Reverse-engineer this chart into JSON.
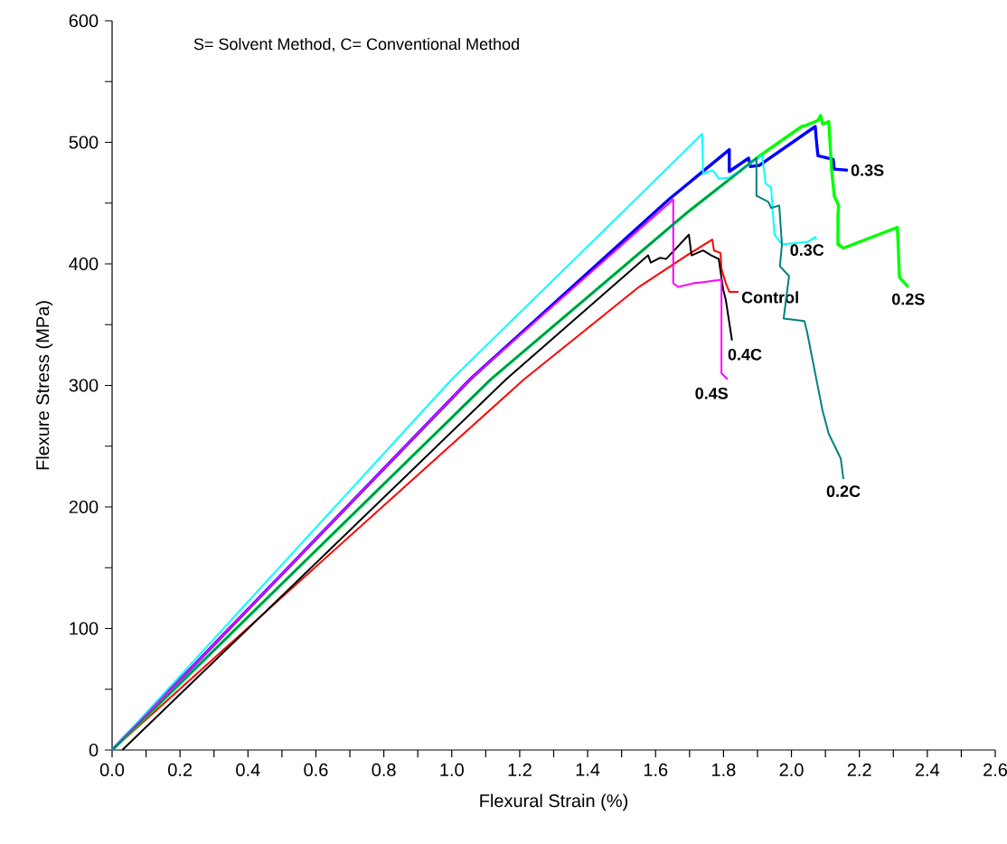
{
  "chart_data": {
    "type": "line",
    "xlabel": "Flexural Strain (%)",
    "ylabel": "Flexure Stress (MPa)",
    "annotations": [
      "S= Solvent Method, C= Conventional Method"
    ],
    "xlim": [
      0,
      2.6
    ],
    "ylim": [
      0,
      600
    ],
    "xticks": [
      {
        "value": 0,
        "label": "0.0"
      },
      {
        "value": 0.1,
        "label": null
      },
      0.2,
      {
        "value": 0.3,
        "label": null
      },
      0.4,
      {
        "value": 0.5,
        "label": null
      },
      0.6,
      {
        "value": 0.7,
        "label": null
      },
      0.8,
      {
        "value": 0.9,
        "label": null
      },
      {
        "value": 1.0,
        "label": "1.0"
      },
      {
        "value": 1.1,
        "label": null
      },
      1.2,
      {
        "value": 1.3,
        "label": null
      },
      1.4,
      {
        "value": 1.5,
        "label": null
      },
      1.6,
      {
        "value": 1.7,
        "label": null
      },
      1.8,
      {
        "value": 1.9,
        "label": null
      },
      {
        "value": 2.0,
        "label": "2.0"
      },
      {
        "value": 2.1,
        "label": null
      },
      2.2,
      {
        "value": 2.3,
        "label": null
      },
      2.4,
      {
        "value": 2.5,
        "label": null
      },
      2.6
    ],
    "yticks": [
      0,
      {
        "value": 50,
        "label": null
      },
      100,
      {
        "value": 150,
        "label": null
      },
      200,
      {
        "value": 250,
        "label": null
      },
      300,
      {
        "value": 350,
        "label": null
      },
      400,
      {
        "value": 450,
        "label": null
      },
      500,
      {
        "value": 550,
        "label": null
      },
      600
    ],
    "grid": false,
    "marker": "none",
    "line_style": "solid",
    "series": [
      {
        "name": "Control",
        "color": "#ff0000",
        "x": [
          0,
          1.213,
          1.551,
          1.692,
          1.767,
          1.772,
          1.791,
          1.794,
          1.807,
          1.817,
          1.844
        ],
        "values": [
          0,
          305,
          381,
          407,
          420,
          411,
          409,
          396,
          384,
          377,
          377
        ]
      },
      {
        "name": "0.4C",
        "color": "#000000",
        "x": [
          0.03,
          1.16,
          1.578,
          1.586,
          1.613,
          1.631,
          1.698,
          1.706,
          1.74,
          1.764,
          1.786,
          1.799,
          1.807,
          1.825
        ],
        "values": [
          0,
          305,
          407,
          401,
          405,
          404,
          424,
          407,
          411,
          407,
          404,
          379,
          370,
          337
        ]
      },
      {
        "name": "0.4S",
        "color": "#ff00ff",
        "x": [
          0,
          1.054,
          1.652,
          1.652,
          1.666,
          1.711,
          1.74,
          1.794,
          1.794,
          1.812
        ],
        "values": [
          0,
          305,
          453,
          384,
          381,
          384,
          385,
          387,
          310,
          305
        ]
      },
      {
        "name": "0.3C",
        "color": "#00ffff",
        "x": [
          0,
          1.0,
          1.541,
          1.737,
          1.74,
          1.767,
          1.777,
          1.786,
          1.817,
          1.914,
          1.924,
          1.94,
          1.95,
          1.972,
          2.047,
          2.07,
          2.073
        ],
        "values": [
          0,
          305,
          453,
          507,
          474,
          477,
          474,
          470,
          471,
          489,
          466,
          463,
          424,
          416,
          418,
          422,
          420
        ]
      },
      {
        "name": "0.3S",
        "color": "#0000ff",
        "x": [
          0,
          1.054,
          1.639,
          1.817,
          1.817,
          1.874,
          1.879,
          1.905,
          2.07,
          2.073,
          2.078,
          2.123,
          2.126,
          2.166
        ],
        "values": [
          0,
          305,
          453,
          494,
          476,
          487,
          480,
          481,
          513,
          503,
          489,
          486,
          478,
          477
        ]
      },
      {
        "name": "0.2C",
        "color": "#008080",
        "x": [
          0,
          1.115,
          1.692,
          1.897,
          1.897,
          1.932,
          1.94,
          1.964,
          1.972,
          1.966,
          1.993,
          1.977,
          2.038,
          2.046,
          2.091,
          2.11,
          2.145,
          2.153
        ],
        "values": [
          0,
          305,
          442,
          487,
          456,
          451,
          446,
          448,
          416,
          398,
          390,
          355,
          353,
          344,
          280,
          260,
          240,
          223
        ]
      },
      {
        "name": "0.2S",
        "color": "#00ff00",
        "x": [
          0,
          1.115,
          1.692,
          1.897,
          2.03,
          2.044,
          2.078,
          2.086,
          2.092,
          2.11,
          2.118,
          2.126,
          2.139,
          2.137,
          2.137,
          2.153,
          2.312,
          2.318,
          2.344
        ],
        "values": [
          0,
          305,
          442,
          487,
          513,
          514,
          518,
          522,
          515,
          517,
          478,
          456,
          448,
          441,
          416,
          413,
          430,
          389,
          381
        ]
      }
    ]
  }
}
